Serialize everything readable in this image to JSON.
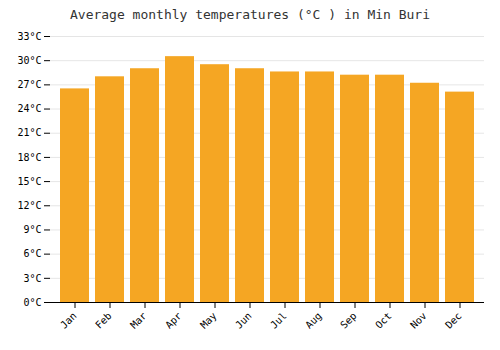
{
  "chart_data": {
    "type": "bar",
    "title": "Average monthly temperatures (°C ) in Min Buri",
    "categories": [
      "Jan",
      "Feb",
      "Mar",
      "Apr",
      "May",
      "Jun",
      "Jul",
      "Aug",
      "Sep",
      "Oct",
      "Nov",
      "Dec"
    ],
    "values": [
      26.5,
      28.0,
      29.0,
      30.5,
      29.5,
      29.0,
      28.6,
      28.6,
      28.2,
      28.2,
      27.2,
      26.1
    ],
    "color": "#F5A623",
    "ylim": [
      0,
      33
    ],
    "yticks": [
      {
        "value": 0,
        "label": "0°C"
      },
      {
        "value": 3,
        "label": "3°C"
      },
      {
        "value": 6,
        "label": "6°C"
      },
      {
        "value": 9,
        "label": "9°C"
      },
      {
        "value": 12,
        "label": "12°C"
      },
      {
        "value": 15,
        "label": "15°C"
      },
      {
        "value": 18,
        "label": "18°C"
      },
      {
        "value": 21,
        "label": "21°C"
      },
      {
        "value": 24,
        "label": "24°C"
      },
      {
        "value": 27,
        "label": "27°C"
      },
      {
        "value": 30,
        "label": "30°C"
      },
      {
        "value": 33,
        "label": "33°C"
      }
    ],
    "grid": true
  }
}
